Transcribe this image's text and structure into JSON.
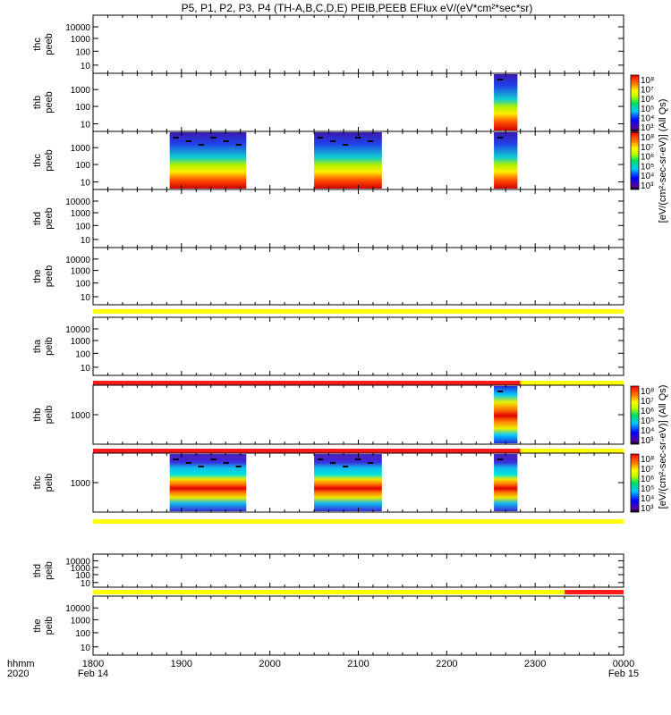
{
  "title": "P5, P1, P2, P3, P4 (TH-A,B,C,D,E) PEIB,PEEB EFlux eV/(eV*cm²*sec*sr)",
  "time_axis": {
    "row1_label": "hhmm",
    "row2_label": "2020",
    "ticks": [
      "1800",
      "1900",
      "2000",
      "2100",
      "2200",
      "2300",
      "0000"
    ],
    "start_date": "Feb 14",
    "end_date": "Feb 15"
  },
  "colorbars": [
    {
      "label": "[eV/(cm²-sec-sr-eV)] (All Qs)",
      "top_ticks": [
        "10⁸",
        "10⁷",
        "10⁶",
        "10⁵",
        "10⁴",
        "10³"
      ],
      "bottom_ticks": [
        "10⁸",
        "10⁷",
        "10⁶",
        "10⁵",
        "10⁴",
        "10³"
      ]
    },
    {
      "label": "[eV/(cm²-sec-sr-eV)] (All Qs)",
      "top_ticks": [
        "10⁸",
        "10⁷",
        "10⁶",
        "10⁵",
        "10⁴",
        "10³"
      ],
      "bottom_ticks": [
        "10⁸",
        "10⁷",
        "10⁶",
        "10⁵",
        "10⁴",
        "10³"
      ]
    }
  ],
  "chart_data": {
    "type": "heatmap",
    "x_range": [
      "1800",
      "0000"
    ],
    "panels": [
      {
        "probe": "thc",
        "product": "peeb",
        "yticks": [
          "10000",
          "1000",
          "100",
          "10"
        ],
        "blocks": [],
        "bars": []
      },
      {
        "probe": "thb",
        "product": "peeb",
        "yticks": [
          "1000",
          "100",
          "10"
        ],
        "blocks": [
          [
            "2232",
            "2248"
          ]
        ],
        "bars": []
      },
      {
        "probe": "thc",
        "product": "peeb",
        "yticks": [
          "1000",
          "100",
          "10"
        ],
        "blocks": [
          [
            "1852",
            "1944"
          ],
          [
            "2030",
            "2076"
          ],
          [
            "2232",
            "2248"
          ]
        ],
        "bars": []
      },
      {
        "probe": "thd",
        "product": "peeb",
        "yticks": [
          "10000",
          "1000",
          "100",
          "10"
        ],
        "blocks": [],
        "bars": []
      },
      {
        "probe": "the",
        "product": "peeb",
        "yticks": [
          "10000",
          "1000",
          "100",
          "10"
        ],
        "blocks": [],
        "bars": [
          {
            "color": "yellow",
            "from": "1800",
            "to": "0000"
          }
        ]
      },
      {
        "probe": "tha",
        "product": "peib",
        "yticks": [
          "10000",
          "1000",
          "100",
          "10"
        ],
        "blocks": [],
        "bars": [
          {
            "color": "red",
            "from": "1800",
            "to": "2250"
          },
          {
            "color": "yellow",
            "from": "2250",
            "to": "0000"
          }
        ]
      },
      {
        "probe": "thb",
        "product": "peib",
        "yticks": [
          "1000"
        ],
        "blocks": [
          [
            "2232",
            "2248"
          ]
        ],
        "bars": [
          {
            "color": "red",
            "from": "1800",
            "to": "2250"
          },
          {
            "color": "yellow",
            "from": "2250",
            "to": "0000"
          }
        ]
      },
      {
        "probe": "thc",
        "product": "peib",
        "yticks": [
          "1000"
        ],
        "blocks": [
          [
            "1852",
            "1944"
          ],
          [
            "2030",
            "2076"
          ],
          [
            "2232",
            "2248"
          ]
        ],
        "bars": [
          {
            "color": "yellow",
            "from": "1800",
            "to": "0000"
          }
        ]
      },
      {
        "probe": "thd",
        "product": "peib",
        "yticks": [
          "10000",
          "1000",
          "100",
          "10"
        ],
        "blocks": [],
        "bars": [
          {
            "color": "yellow",
            "from": "1800",
            "to": "2280"
          },
          {
            "color": "red",
            "from": "2280",
            "to": "0000"
          }
        ]
      },
      {
        "probe": "the",
        "product": "peib",
        "yticks": [
          "10000",
          "1000",
          "100",
          "10"
        ],
        "blocks": [],
        "bars": []
      }
    ]
  }
}
